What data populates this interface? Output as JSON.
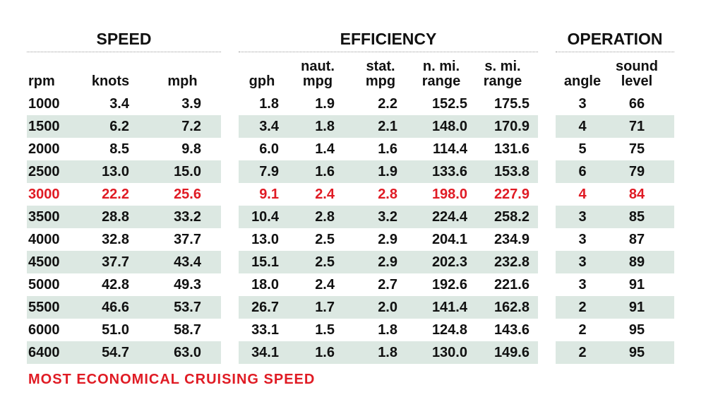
{
  "groups": {
    "speed": "SPEED",
    "efficiency": "EFFICIENCY",
    "operation": "OPERATION"
  },
  "columns": [
    {
      "key": "rpm",
      "lines": [
        "rpm"
      ]
    },
    {
      "key": "knots",
      "lines": [
        "knots"
      ]
    },
    {
      "key": "mph",
      "lines": [
        "mph"
      ]
    },
    {
      "key": "gph",
      "lines": [
        "gph"
      ]
    },
    {
      "key": "naut_mpg",
      "lines": [
        "naut.",
        "mpg"
      ]
    },
    {
      "key": "stat_mpg",
      "lines": [
        "stat.",
        "mpg"
      ]
    },
    {
      "key": "n_mi_range",
      "lines": [
        "n. mi.",
        "range"
      ]
    },
    {
      "key": "s_mi_range",
      "lines": [
        "s. mi.",
        "range"
      ]
    },
    {
      "key": "angle",
      "lines": [
        "angle"
      ]
    },
    {
      "key": "sound_level",
      "lines": [
        "sound",
        "level"
      ]
    }
  ],
  "rows": [
    {
      "cells": [
        "1000",
        "3.4",
        "3.9",
        "1.8",
        "1.9",
        "2.2",
        "152.5",
        "175.5",
        "3",
        "66"
      ],
      "highlight": false
    },
    {
      "cells": [
        "1500",
        "6.2",
        "7.2",
        "3.4",
        "1.8",
        "2.1",
        "148.0",
        "170.9",
        "4",
        "71"
      ],
      "highlight": false
    },
    {
      "cells": [
        "2000",
        "8.5",
        "9.8",
        "6.0",
        "1.4",
        "1.6",
        "114.4",
        "131.6",
        "5",
        "75"
      ],
      "highlight": false
    },
    {
      "cells": [
        "2500",
        "13.0",
        "15.0",
        "7.9",
        "1.6",
        "1.9",
        "133.6",
        "153.8",
        "6",
        "79"
      ],
      "highlight": false
    },
    {
      "cells": [
        "3000",
        "22.2",
        "25.6",
        "9.1",
        "2.4",
        "2.8",
        "198.0",
        "227.9",
        "4",
        "84"
      ],
      "highlight": true
    },
    {
      "cells": [
        "3500",
        "28.8",
        "33.2",
        "10.4",
        "2.8",
        "3.2",
        "224.4",
        "258.2",
        "3",
        "85"
      ],
      "highlight": false
    },
    {
      "cells": [
        "4000",
        "32.8",
        "37.7",
        "13.0",
        "2.5",
        "2.9",
        "204.1",
        "234.9",
        "3",
        "87"
      ],
      "highlight": false
    },
    {
      "cells": [
        "4500",
        "37.7",
        "43.4",
        "15.1",
        "2.5",
        "2.9",
        "202.3",
        "232.8",
        "3",
        "89"
      ],
      "highlight": false
    },
    {
      "cells": [
        "5000",
        "42.8",
        "49.3",
        "18.0",
        "2.4",
        "2.7",
        "192.6",
        "221.6",
        "3",
        "91"
      ],
      "highlight": false
    },
    {
      "cells": [
        "5500",
        "46.6",
        "53.7",
        "26.7",
        "1.7",
        "2.0",
        "141.4",
        "162.8",
        "2",
        "91"
      ],
      "highlight": false
    },
    {
      "cells": [
        "6000",
        "51.0",
        "58.7",
        "33.1",
        "1.5",
        "1.8",
        "124.8",
        "143.6",
        "2",
        "95"
      ],
      "highlight": false
    },
    {
      "cells": [
        "6400",
        "54.7",
        "63.0",
        "34.1",
        "1.6",
        "1.8",
        "130.0",
        "149.6",
        "2",
        "95"
      ],
      "highlight": false
    }
  ],
  "footnote": "MOST ECONOMICAL CRUISING SPEED",
  "colors": {
    "highlight": "#e01b24",
    "row_shade": "#dce8e2",
    "text": "#111111"
  }
}
